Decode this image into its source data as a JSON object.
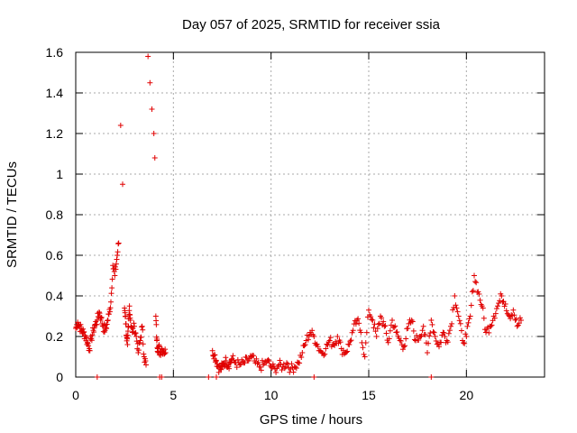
{
  "chart_data": {
    "type": "scatter",
    "title": "Day 057 of 2025, SRMTID for receiver ssia",
    "xlabel": "GPS time / hours",
    "ylabel": "SRMTID / TECUs",
    "xlim": [
      0,
      24
    ],
    "ylim": [
      0,
      1.6
    ],
    "x_ticks": [
      0,
      5,
      10,
      15,
      20
    ],
    "x_tick_labels": [
      "0",
      "5",
      "10",
      "15",
      "20"
    ],
    "y_ticks": [
      0,
      0.2,
      0.4,
      0.6,
      0.8,
      1.0,
      1.2,
      1.4,
      1.6
    ],
    "y_tick_labels": [
      "0",
      "0.2",
      "0.4",
      "0.6",
      "0.8",
      "1",
      "1.2",
      "1.4",
      "1.6"
    ],
    "grid": true,
    "marker": "+",
    "colors": {
      "series": "#e00000",
      "grid": "#aaaaaa",
      "axis": "#000000"
    },
    "series": [
      {
        "name": "SRMTID",
        "x": [
          0.0,
          0.1,
          0.2,
          0.3,
          0.4,
          0.5,
          0.6,
          0.7,
          0.8,
          0.9,
          1.0,
          1.1,
          1.2,
          1.3,
          1.4,
          1.5,
          1.6,
          1.7,
          1.8,
          1.9,
          2.0,
          2.1,
          2.2,
          2.3,
          2.4,
          2.5,
          2.55,
          2.6,
          2.65,
          2.7,
          2.75,
          2.8,
          2.9,
          3.0,
          3.1,
          3.2,
          3.3,
          3.4,
          3.5,
          3.6,
          3.7,
          3.8,
          3.9,
          4.0,
          4.05,
          4.1,
          4.15,
          4.2,
          4.25,
          4.3,
          4.4,
          4.5,
          4.6,
          7.0,
          7.1,
          7.2,
          7.3,
          7.4,
          7.5,
          7.6,
          7.7,
          7.8,
          7.9,
          8.0,
          8.2,
          8.4,
          8.6,
          8.8,
          9.0,
          9.2,
          9.4,
          9.6,
          9.8,
          10.0,
          10.2,
          10.4,
          10.6,
          10.8,
          11.0,
          11.2,
          11.4,
          11.6,
          11.8,
          12.0,
          12.2,
          12.4,
          12.6,
          12.8,
          13.0,
          13.2,
          13.4,
          13.6,
          13.8,
          14.0,
          14.2,
          14.4,
          14.6,
          14.8,
          15.0,
          15.2,
          15.4,
          15.6,
          15.8,
          16.0,
          16.2,
          16.4,
          16.6,
          16.8,
          17.0,
          17.2,
          17.4,
          17.6,
          17.8,
          18.0,
          18.2,
          18.4,
          18.6,
          18.8,
          19.0,
          19.2,
          19.4,
          19.6,
          19.8,
          20.0,
          20.2,
          20.4,
          20.6,
          20.8,
          21.0,
          21.2,
          21.4,
          21.6,
          21.8,
          22.0,
          22.2,
          22.4,
          22.6,
          22.8
        ],
        "y": [
          0.24,
          0.27,
          0.25,
          0.23,
          0.22,
          0.2,
          0.17,
          0.14,
          0.19,
          0.23,
          0.26,
          0.28,
          0.32,
          0.29,
          0.25,
          0.23,
          0.26,
          0.31,
          0.37,
          0.55,
          0.5,
          0.58,
          0.66,
          1.24,
          0.95,
          0.34,
          0.3,
          0.2,
          0.16,
          0.25,
          0.35,
          0.28,
          0.22,
          0.25,
          0.2,
          0.12,
          0.18,
          0.25,
          0.1,
          0.06,
          1.58,
          1.45,
          1.32,
          1.2,
          1.08,
          0.3,
          0.18,
          0.14,
          0.15,
          0.12,
          0.14,
          0.13,
          0.12,
          0.13,
          0.11,
          0.08,
          0.05,
          0.04,
          0.05,
          0.07,
          0.08,
          0.06,
          0.07,
          0.09,
          0.07,
          0.06,
          0.07,
          0.08,
          0.1,
          0.07,
          0.05,
          0.06,
          0.08,
          0.05,
          0.04,
          0.06,
          0.05,
          0.07,
          0.04,
          0.05,
          0.07,
          0.12,
          0.18,
          0.22,
          0.2,
          0.15,
          0.12,
          0.14,
          0.18,
          0.16,
          0.2,
          0.14,
          0.12,
          0.16,
          0.23,
          0.28,
          0.22,
          0.1,
          0.33,
          0.28,
          0.2,
          0.3,
          0.25,
          0.17,
          0.28,
          0.22,
          0.18,
          0.15,
          0.24,
          0.28,
          0.18,
          0.2,
          0.25,
          0.12,
          0.28,
          0.2,
          0.15,
          0.22,
          0.18,
          0.25,
          0.4,
          0.3,
          0.18,
          0.2,
          0.3,
          0.5,
          0.42,
          0.35,
          0.22,
          0.25,
          0.3,
          0.35,
          0.4,
          0.36,
          0.3,
          0.33,
          0.25,
          0.28
        ]
      }
    ],
    "zero_markers_x": [
      1.1,
      4.3,
      4.4,
      6.8,
      7.2,
      12.2,
      18.2
    ]
  }
}
